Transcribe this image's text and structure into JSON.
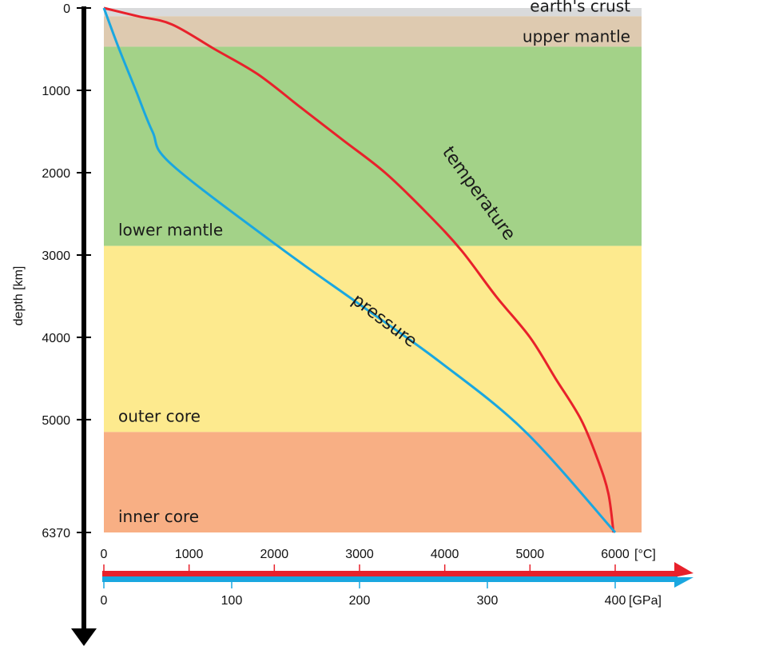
{
  "chart_data": {
    "type": "line",
    "title": "",
    "ylabel": "depth [km]",
    "ylim": [
      0,
      6370
    ],
    "y_ticks": [
      0,
      1000,
      2000,
      3000,
      4000,
      5000,
      6370
    ],
    "temperature_axis": {
      "unit": "[°C]",
      "range": [
        0,
        6000
      ],
      "ticks": [
        0,
        1000,
        2000,
        3000,
        4000,
        5000,
        6000
      ],
      "color": "#e8212b"
    },
    "pressure_axis": {
      "unit": "[GPa]",
      "range": [
        0,
        400
      ],
      "ticks": [
        0,
        100,
        200,
        300,
        400
      ],
      "color": "#1aa7e0"
    },
    "layers": [
      {
        "name": "earth's crust",
        "top": 0,
        "bottom": 100,
        "color": "#d9dadb"
      },
      {
        "name": "upper mantle",
        "top": 100,
        "bottom": 470,
        "color": "#decab0"
      },
      {
        "name": "lower mantle",
        "top": 470,
        "bottom": 2890,
        "color": "#a3d288"
      },
      {
        "name": "outer core",
        "top": 2890,
        "bottom": 5150,
        "color": "#fdea8e"
      },
      {
        "name": "inner core",
        "top": 5150,
        "bottom": 6370,
        "color": "#f8af84"
      }
    ],
    "series": [
      {
        "name": "temperature",
        "axis": "temperature",
        "color": "#e8212b",
        "points": [
          [
            0,
            0
          ],
          [
            400,
            100
          ],
          [
            800,
            200
          ],
          [
            1300,
            500
          ],
          [
            1800,
            800
          ],
          [
            2300,
            1200
          ],
          [
            2800,
            1600
          ],
          [
            3300,
            2000
          ],
          [
            3800,
            2500
          ],
          [
            4200,
            2950
          ],
          [
            4600,
            3500
          ],
          [
            5000,
            4000
          ],
          [
            5300,
            4500
          ],
          [
            5600,
            5000
          ],
          [
            5800,
            5500
          ],
          [
            5920,
            5900
          ],
          [
            5980,
            6370
          ]
        ]
      },
      {
        "name": "pressure",
        "axis": "pressure",
        "color": "#1aa7e0",
        "points": [
          [
            0,
            0
          ],
          [
            12,
            500
          ],
          [
            25,
            1000
          ],
          [
            38,
            1500
          ],
          [
            53,
            1900
          ],
          [
            136,
            2890
          ],
          [
            200,
            3600
          ],
          [
            263,
            4300
          ],
          [
            330,
            5150
          ],
          [
            400,
            6370
          ]
        ]
      }
    ]
  }
}
